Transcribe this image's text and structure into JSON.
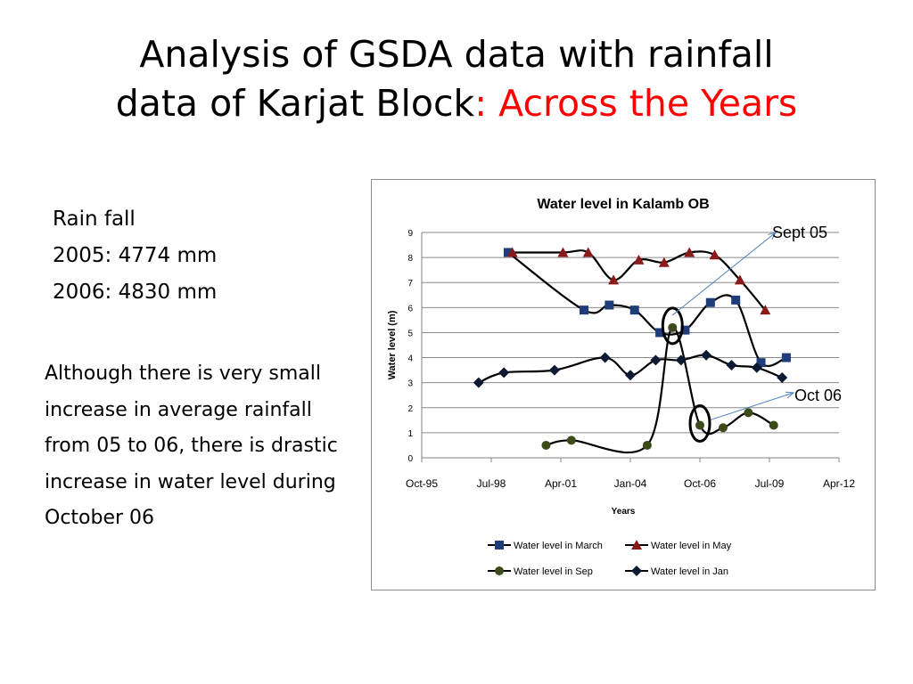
{
  "slide": {
    "title_line1": "Analysis of GSDA data with rainfall",
    "title_line2_main": "data of Karjat Block",
    "title_line2_accent": ": Across the Years",
    "accent_color": "#ff0000",
    "rainfall_heading": "Rain fall",
    "rainfall_2005": "2005: 4774 mm",
    "rainfall_2006": "2006: 4830 mm",
    "paragraph": "Although there is very small increase in average rainfall from 05 to 06, there is drastic increase in water level during October 06"
  },
  "annotations": {
    "sept05": "Sept 05",
    "oct06": "Oct 06",
    "arrow_color": "#4a7ebb"
  },
  "chart_data": {
    "type": "line",
    "title": "Water level in Kalamb OB",
    "xlabel": "Years",
    "ylabel": "Water level (m)",
    "ylim": [
      0,
      9
    ],
    "yticks": [
      0,
      1,
      2,
      3,
      4,
      5,
      6,
      7,
      8,
      9
    ],
    "xlim": [
      "1995-10",
      "2012-04"
    ],
    "xtick_labels": [
      "Oct-95",
      "Jul-98",
      "Apr-01",
      "Jan-04",
      "Oct-06",
      "Jul-09",
      "Apr-12"
    ],
    "grid": "horizontal",
    "legend_position": "bottom",
    "series": [
      {
        "name": "Water level in March",
        "color": "#1f3d7a",
        "marker": "square",
        "points": [
          [
            "1999-03",
            8.2
          ],
          [
            "2002-03",
            5.9
          ],
          [
            "2003-03",
            6.1
          ],
          [
            "2004-03",
            5.9
          ],
          [
            "2005-03",
            5.0
          ],
          [
            "2006-03",
            5.1
          ],
          [
            "2007-03",
            6.2
          ],
          [
            "2008-03",
            6.3
          ],
          [
            "2009-03",
            3.8
          ],
          [
            "2010-03",
            4.0
          ]
        ]
      },
      {
        "name": "Water level in May",
        "color": "#8b1a1a",
        "marker": "triangle",
        "points": [
          [
            "1999-05",
            8.2
          ],
          [
            "2001-05",
            8.2
          ],
          [
            "2002-05",
            8.2
          ],
          [
            "2003-05",
            7.1
          ],
          [
            "2004-05",
            7.9
          ],
          [
            "2005-05",
            7.8
          ],
          [
            "2006-05",
            8.2
          ],
          [
            "2007-05",
            8.1
          ],
          [
            "2008-05",
            7.1
          ],
          [
            "2009-05",
            5.9
          ]
        ]
      },
      {
        "name": "Water level in Sep",
        "color": "#3d4a1a",
        "marker": "circle",
        "points": [
          [
            "2000-09",
            0.5
          ],
          [
            "2001-09",
            0.7
          ],
          [
            "2004-09",
            0.5
          ],
          [
            "2005-09",
            5.2
          ],
          [
            "2006-10",
            1.3
          ],
          [
            "2007-09",
            1.2
          ],
          [
            "2008-09",
            1.8
          ],
          [
            "2009-09",
            1.3
          ]
        ]
      },
      {
        "name": "Water level in Jan",
        "color": "#0d1a33",
        "marker": "diamond",
        "points": [
          [
            "1998-01",
            3.0
          ],
          [
            "1999-01",
            3.4
          ],
          [
            "2001-01",
            3.5
          ],
          [
            "2003-01",
            4.0
          ],
          [
            "2004-01",
            3.3
          ],
          [
            "2005-01",
            3.9
          ],
          [
            "2006-01",
            3.9
          ],
          [
            "2007-01",
            4.1
          ],
          [
            "2008-01",
            3.7
          ],
          [
            "2009-01",
            3.6
          ],
          [
            "2010-01",
            3.2
          ]
        ]
      }
    ]
  }
}
